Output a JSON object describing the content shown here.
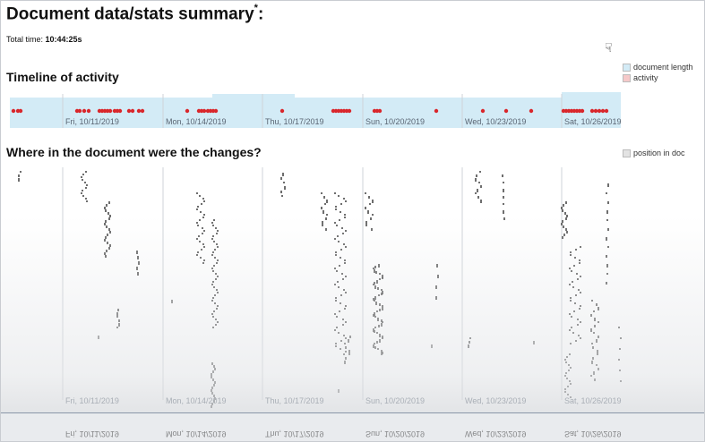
{
  "page": {
    "title": "Document data/stats summary",
    "title_mark": "*",
    "title_suffix": ":",
    "total_time_label": "Total time:",
    "total_time_value": "10:44:25s"
  },
  "timeline": {
    "heading": "Timeline of activity",
    "legend": [
      {
        "label": "document length",
        "color": "#d3ebf6"
      },
      {
        "label": "activity",
        "color": "#f6c9c9"
      }
    ],
    "dates": [
      "Fri, 10/11/2019",
      "Mon, 10/14/2019",
      "Thu, 10/17/2019",
      "Sun, 10/20/2019",
      "Wed, 10/23/2019",
      "Sat, 10/26/2019"
    ]
  },
  "changes": {
    "heading": "Where in the document were the changes?",
    "legend": [
      {
        "label": "position in doc",
        "color": "#e3e3e3"
      }
    ],
    "dates": [
      "Fri, 10/11/2019",
      "Mon, 10/14/2019",
      "Thu, 10/17/2019",
      "Sun, 10/20/2019",
      "Wed, 10/23/2019",
      "Sat, 10/26/2019"
    ]
  },
  "colors": {
    "doc_length": "#d3ebf6",
    "activity": "#d9262b",
    "change_mark": "#555555",
    "gridline": "#cfd3d8"
  },
  "icons": {
    "cursor": "pointer-hand-icon"
  }
}
